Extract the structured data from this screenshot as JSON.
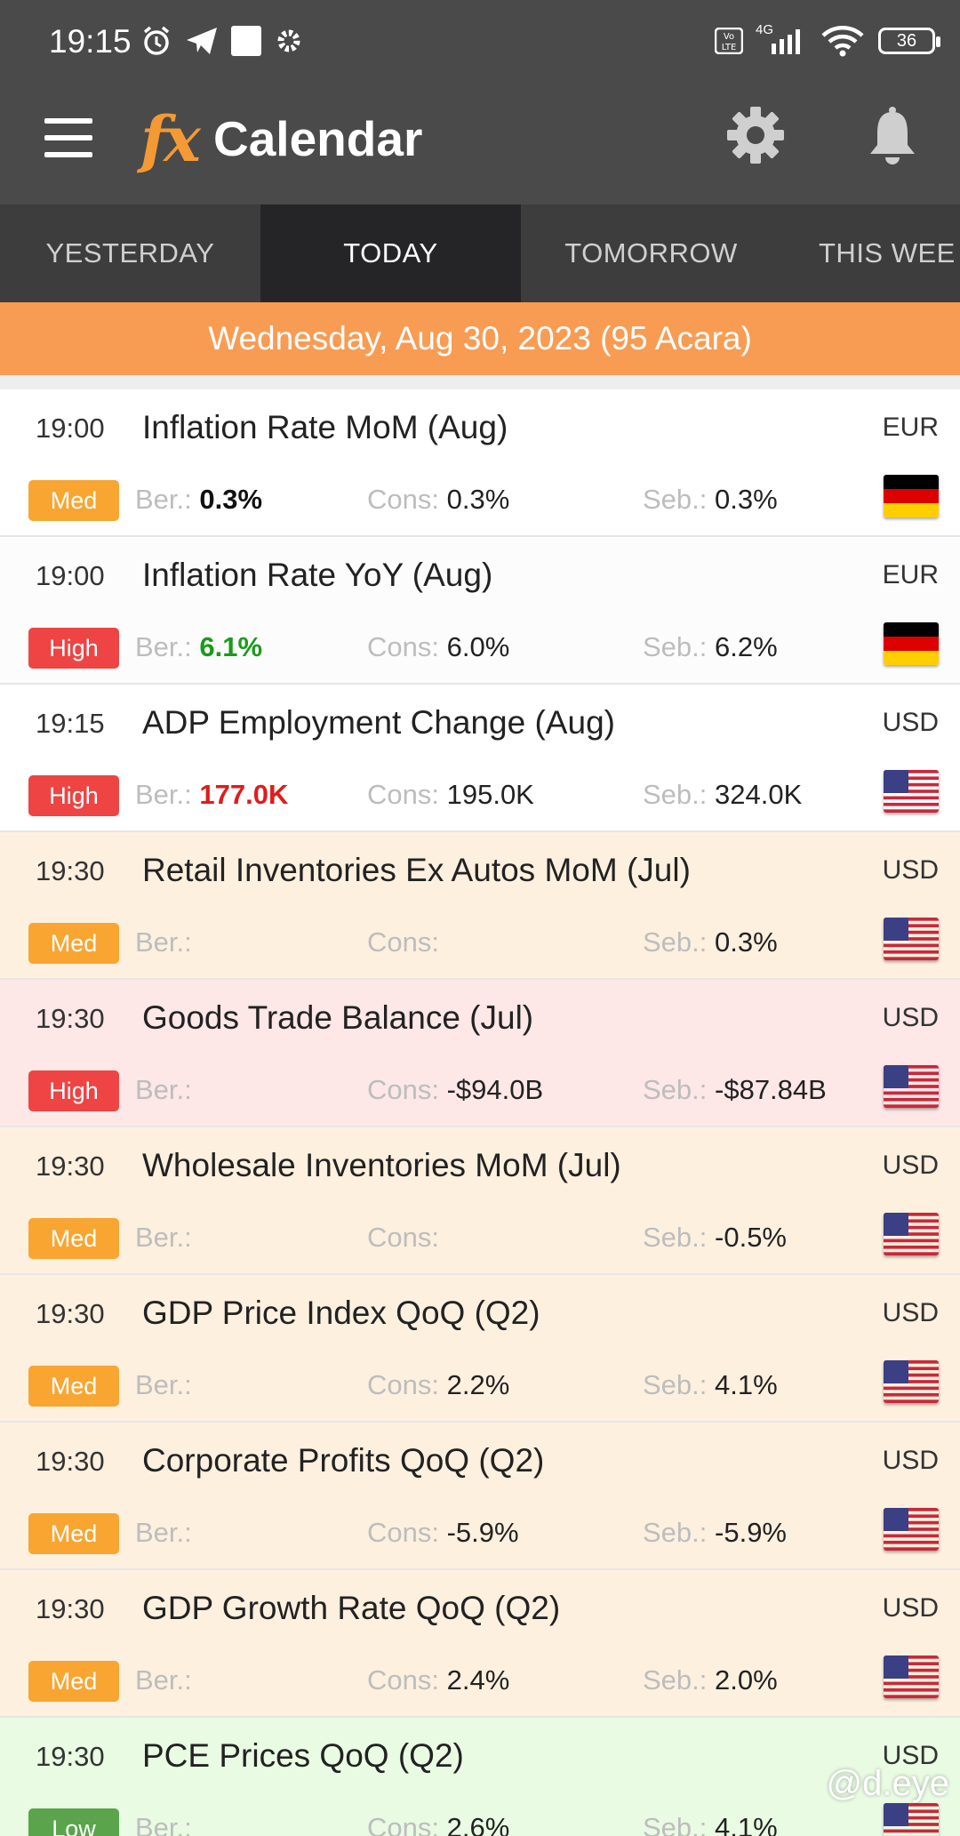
{
  "status_bar": {
    "time": "19:15",
    "network": "4G",
    "battery": "36"
  },
  "app_bar": {
    "logo": "fx",
    "title": "Calendar"
  },
  "tabs": [
    {
      "label": "YESTERDAY",
      "active": false
    },
    {
      "label": "TODAY",
      "active": true
    },
    {
      "label": "TOMORROW",
      "active": false
    },
    {
      "label": "THIS WEE",
      "active": false
    }
  ],
  "date_banner": "Wednesday, Aug 30, 2023 (95 Acara)",
  "labels": {
    "ber": "Ber.:",
    "cons": "Cons:",
    "seb": "Seb.:"
  },
  "colors": {
    "impact_med": "#f9a531",
    "impact_high": "#ee4444",
    "impact_low": "#5aa54c",
    "actual_green": "#1a9a1a",
    "actual_red": "#dd1d1d",
    "header_bg": "#4a4a4a",
    "banner_bg": "#f89c54"
  },
  "events": [
    {
      "time": "19:00",
      "title": "Inflation Rate MoM (Aug)",
      "currency": "EUR",
      "flag": "de-flag-icon",
      "impact": "Med",
      "actual": "0.3%",
      "actual_color": "#111111",
      "consensus": "0.3%",
      "previous": "0.3%",
      "row_bg": "#ffffff"
    },
    {
      "time": "19:00",
      "title": "Inflation Rate YoY (Aug)",
      "currency": "EUR",
      "flag": "de-flag-icon",
      "impact": "High",
      "actual": "6.1%",
      "actual_color": "#1a9a1a",
      "consensus": "6.0%",
      "previous": "6.2%",
      "row_bg": "#fcfcfc"
    },
    {
      "time": "19:15",
      "title": "ADP Employment Change (Aug)",
      "currency": "USD",
      "flag": "us-flag-icon",
      "impact": "High",
      "actual": "177.0K",
      "actual_color": "#dd1d1d",
      "consensus": "195.0K",
      "previous": "324.0K",
      "row_bg": "#ffffff"
    },
    {
      "time": "19:30",
      "title": "Retail Inventories Ex Autos MoM (Jul)",
      "currency": "USD",
      "flag": "us-flag-icon",
      "impact": "Med",
      "actual": "",
      "actual_color": "#111111",
      "consensus": "",
      "previous": "0.3%",
      "row_bg": "#fef0df"
    },
    {
      "time": "19:30",
      "title": "Goods Trade Balance (Jul)",
      "currency": "USD",
      "flag": "us-flag-icon",
      "impact": "High",
      "actual": "",
      "actual_color": "#111111",
      "consensus": "-$94.0B",
      "previous": "-$87.84B",
      "row_bg": "#fde7e7"
    },
    {
      "time": "19:30",
      "title": "Wholesale Inventories MoM (Jul)",
      "currency": "USD",
      "flag": "us-flag-icon",
      "impact": "Med",
      "actual": "",
      "actual_color": "#111111",
      "consensus": "",
      "previous": "-0.5%",
      "row_bg": "#fef0df"
    },
    {
      "time": "19:30",
      "title": "GDP Price Index QoQ (Q2)",
      "currency": "USD",
      "flag": "us-flag-icon",
      "impact": "Med",
      "actual": "",
      "actual_color": "#111111",
      "consensus": "2.2%",
      "previous": "4.1%",
      "row_bg": "#fef0df"
    },
    {
      "time": "19:30",
      "title": "Corporate Profits QoQ (Q2)",
      "currency": "USD",
      "flag": "us-flag-icon",
      "impact": "Med",
      "actual": "",
      "actual_color": "#111111",
      "consensus": "-5.9%",
      "previous": "-5.9%",
      "row_bg": "#fef0df"
    },
    {
      "time": "19:30",
      "title": "GDP Growth Rate QoQ (Q2)",
      "currency": "USD",
      "flag": "us-flag-icon",
      "impact": "Med",
      "actual": "",
      "actual_color": "#111111",
      "consensus": "2.4%",
      "previous": "2.0%",
      "row_bg": "#fef0df"
    },
    {
      "time": "19:30",
      "title": "PCE Prices QoQ (Q2)",
      "currency": "USD",
      "flag": "us-flag-icon",
      "impact": "Low",
      "actual": "",
      "actual_color": "#111111",
      "consensus": "2.6%",
      "previous": "4.1%",
      "row_bg": "#e9fbe3"
    }
  ],
  "watermark": "@d.eye"
}
